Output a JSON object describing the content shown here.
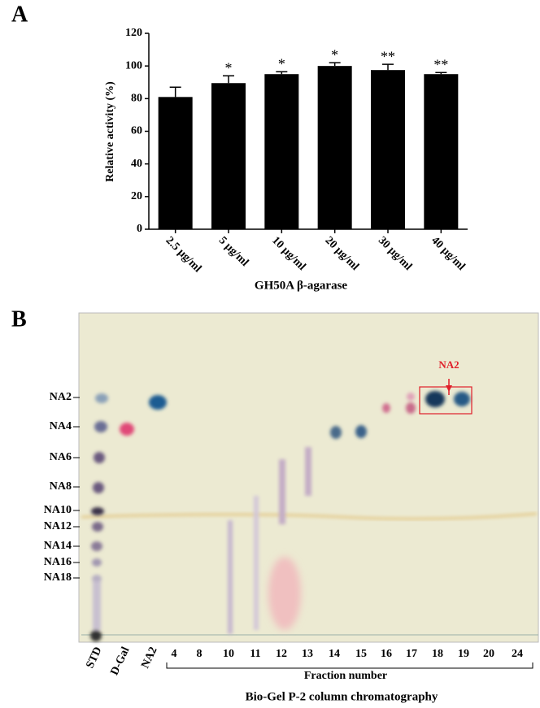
{
  "chart_data": {
    "type": "bar",
    "panel_label": "A",
    "categories": [
      "2.5 μg/ml",
      "5 μg/ml",
      "10 μg/ml",
      "20 μg/ml",
      "30 μg/ml",
      "40 μg/ml"
    ],
    "values": [
      81,
      89.5,
      95,
      100,
      97.5,
      95
    ],
    "errors": [
      6,
      4.5,
      1.5,
      2,
      3.5,
      1
    ],
    "annotations": [
      null,
      "*",
      "*",
      "*",
      "**",
      "**"
    ],
    "color": "#000000",
    "ylabel": "Relative activity (%)",
    "xlabel": "GH50A β-agarase",
    "ylim": [
      0,
      120
    ],
    "yticks": [
      0,
      20,
      40,
      60,
      80,
      100,
      120
    ]
  },
  "panel_b": {
    "label": "B",
    "markers": [
      "NA2",
      "NA4",
      "NA6",
      "NA8",
      "NA10",
      "NA12",
      "NA14",
      "NA16",
      "NA18"
    ],
    "lane_labels": [
      "STD",
      "D-Gal",
      "NA2"
    ],
    "fractions": [
      "4",
      "8",
      "10",
      "11",
      "12",
      "13",
      "14",
      "15",
      "16",
      "17",
      "18",
      "19",
      "20",
      "24"
    ],
    "box_label": "NA2",
    "x_label": "Fraction number",
    "caption": "Bio-Gel P-2 column chromatography"
  }
}
